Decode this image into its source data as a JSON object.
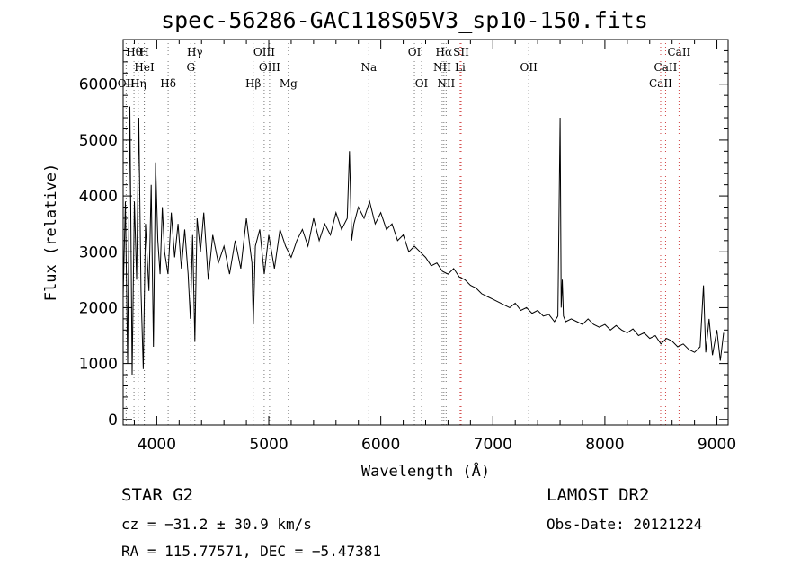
{
  "chart_data": {
    "type": "line",
    "title": "spec-56286-GAC118S05V3_sp10-150.fits",
    "xlabel": "Wavelength (Å)",
    "ylabel": "Flux (relative)",
    "xlim": [
      3700,
      9100
    ],
    "ylim": [
      -100,
      6800
    ],
    "xticks": [
      4000,
      5000,
      6000,
      7000,
      8000,
      9000
    ],
    "yticks": [
      0,
      1000,
      2000,
      3000,
      4000,
      5000,
      6000
    ],
    "grid": false,
    "series": [
      {
        "x": [
          3700,
          3720,
          3740,
          3760,
          3780,
          3800,
          3820,
          3840,
          3860,
          3880,
          3900,
          3930,
          3950,
          3970,
          3990,
          4010,
          4030,
          4050,
          4070,
          4100,
          4130,
          4160,
          4190,
          4220,
          4250,
          4280,
          4300,
          4320,
          4340,
          4360,
          4390,
          4420,
          4460,
          4500,
          4550,
          4600,
          4650,
          4700,
          4750,
          4800,
          4850,
          4862,
          4880,
          4920,
          4960,
          5000,
          5050,
          5100,
          5150,
          5200,
          5250,
          5300,
          5350,
          5400,
          5450,
          5500,
          5550,
          5600,
          5650,
          5700,
          5720,
          5740,
          5760,
          5800,
          5850,
          5900,
          5950,
          6000,
          6050,
          6100,
          6150,
          6200,
          6250,
          6300,
          6350,
          6400,
          6450,
          6500,
          6550,
          6600,
          6650,
          6700,
          6750,
          6800,
          6850,
          6900,
          6950,
          7000,
          7050,
          7100,
          7150,
          7200,
          7250,
          7300,
          7350,
          7400,
          7450,
          7500,
          7550,
          7580,
          7600,
          7610,
          7620,
          7630,
          7650,
          7700,
          7750,
          7800,
          7850,
          7900,
          7950,
          8000,
          8050,
          8100,
          8150,
          8200,
          8250,
          8300,
          8350,
          8400,
          8450,
          8500,
          8550,
          8600,
          8650,
          8700,
          8750,
          8800,
          8850,
          8880,
          8900,
          8930,
          8960,
          9000,
          9030,
          9060
        ],
        "y": [
          2200,
          3900,
          1000,
          5600,
          800,
          3900,
          2500,
          5400,
          2300,
          900,
          3500,
          2300,
          4200,
          1300,
          4600,
          3200,
          2600,
          3800,
          3000,
          2600,
          3700,
          2900,
          3500,
          2700,
          3400,
          2600,
          1800,
          3300,
          1400,
          3600,
          3000,
          3700,
          2500,
          3300,
          2800,
          3100,
          2600,
          3200,
          2700,
          3600,
          2800,
          1700,
          3100,
          3400,
          2600,
          3300,
          2700,
          3400,
          3100,
          2900,
          3200,
          3400,
          3100,
          3600,
          3200,
          3500,
          3300,
          3700,
          3400,
          3600,
          4800,
          3200,
          3500,
          3800,
          3600,
          3900,
          3500,
          3700,
          3400,
          3500,
          3200,
          3300,
          3000,
          3100,
          3000,
          2900,
          2750,
          2800,
          2650,
          2600,
          2700,
          2550,
          2500,
          2400,
          2350,
          2250,
          2200,
          2150,
          2100,
          2050,
          2000,
          2080,
          1950,
          2000,
          1900,
          1950,
          1850,
          1880,
          1750,
          1850,
          5400,
          2000,
          2500,
          1850,
          1750,
          1800,
          1750,
          1700,
          1800,
          1700,
          1650,
          1700,
          1600,
          1680,
          1600,
          1550,
          1620,
          1500,
          1550,
          1450,
          1500,
          1350,
          1450,
          1400,
          1300,
          1350,
          1250,
          1200,
          1300,
          2400,
          1200,
          1800,
          1150,
          1600,
          1050,
          1550
        ]
      }
    ],
    "lines": {
      "row1": [
        {
          "label": "Hθ",
          "x": 3797
        },
        {
          "label": "H",
          "x": 3889
        },
        {
          "label": "Hγ",
          "x": 4340
        },
        {
          "label": "OIII",
          "x": 4959
        },
        {
          "label": "OI",
          "x": 6300
        },
        {
          "label": "Hα",
          "x": 6563
        },
        {
          "label": "SII",
          "x": 6717
        },
        {
          "label": "CaII",
          "x": 8662
        }
      ],
      "row2": [
        {
          "label": "HeI",
          "x": 3889
        },
        {
          "label": "G",
          "x": 4304
        },
        {
          "label": "OIII",
          "x": 5007
        },
        {
          "label": "Na",
          "x": 5893
        },
        {
          "label": "NII",
          "x": 6548
        },
        {
          "label": "Li",
          "x": 6708
        },
        {
          "label": "OII",
          "x": 7320
        },
        {
          "label": "CaII",
          "x": 8542
        }
      ],
      "row3": [
        {
          "label": "OII",
          "x": 3727
        },
        {
          "label": "Hη",
          "x": 3835
        },
        {
          "label": "Hδ",
          "x": 4102
        },
        {
          "label": "Hβ",
          "x": 4861
        },
        {
          "label": "Mg",
          "x": 5175
        },
        {
          "label": "OI",
          "x": 6364
        },
        {
          "label": "NII",
          "x": 6583
        },
        {
          "label": "CaII",
          "x": 8498
        }
      ]
    }
  },
  "footer": {
    "object_type": "STAR    G2",
    "cz": "cz = −31.2 ± 30.9 km/s",
    "radec": "RA = 115.77571, DEC =  −5.47381",
    "survey": "LAMOST DR2",
    "obs_date": "Obs-Date: 20121224"
  }
}
